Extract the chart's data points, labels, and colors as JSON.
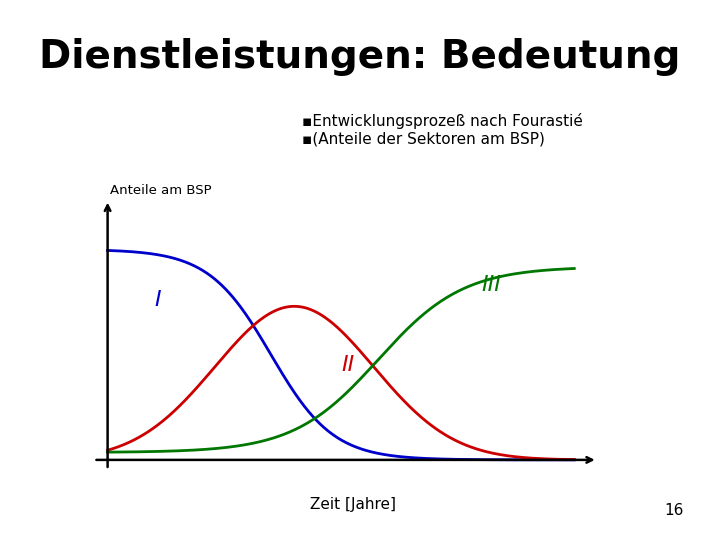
{
  "title": "Dienstleistungen: Bedeutung",
  "title_fontsize": 28,
  "title_fontweight": "bold",
  "title_color": "#000000",
  "background_color": "#ffffff",
  "annotation_line1": "▪Entwicklungsprozeß nach Fourastié",
  "annotation_line2": "▪(Anteile der Sektoren am BSP)",
  "ylabel": "Anteile am BSP",
  "xlabel": "Zeit [Jahre]",
  "label_I": "I",
  "label_II": "II",
  "label_III": "III",
  "color_I": "#0000cc",
  "color_II": "#cc0000",
  "color_III": "#007700",
  "page_number": "16"
}
